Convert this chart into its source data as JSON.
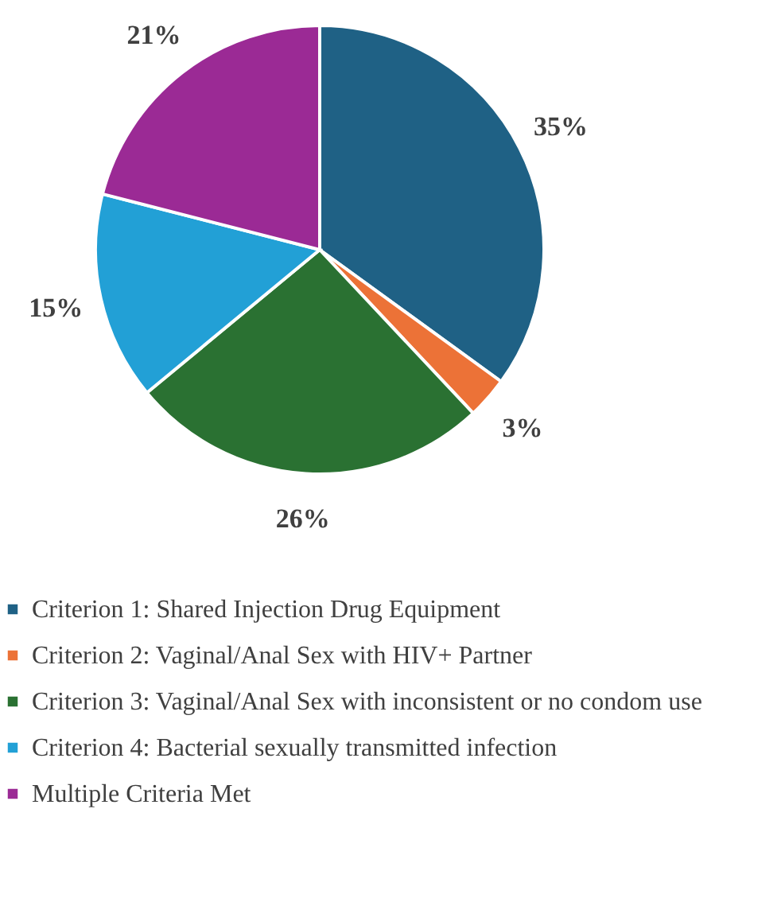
{
  "chart_data": {
    "type": "pie",
    "categories": [
      "Criterion 1: Shared Injection Drug Equipment",
      "Criterion 2: Vaginal/Anal Sex with HIV+ Partner",
      "Criterion 3: Vaginal/Anal Sex with inconsistent or no condom use",
      "Criterion 4: Bacterial sexually transmitted infection",
      "Multiple Criteria Met"
    ],
    "values": [
      35,
      3,
      26,
      15,
      21
    ],
    "value_labels": [
      "35%",
      "3%",
      "26%",
      "15%",
      "21%"
    ],
    "colors": [
      "#1f6185",
      "#ec7237",
      "#2a7132",
      "#22a0d6",
      "#9b2a95"
    ],
    "legend": "bottom"
  }
}
